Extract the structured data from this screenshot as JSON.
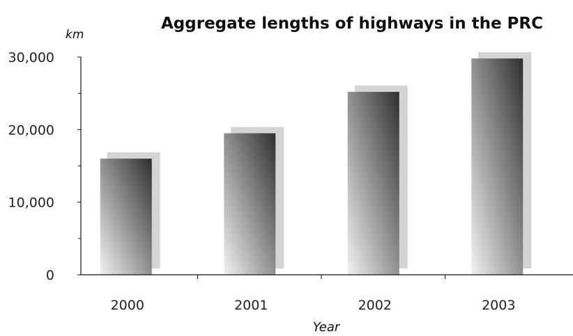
{
  "chart_data": {
    "type": "bar",
    "title": "Aggregate lengths of highways in the PRC",
    "ylabel": "km",
    "xlabel": "Year",
    "categories": [
      "2000",
      "2001",
      "2002",
      "2003"
    ],
    "values": [
      16000,
      19500,
      25200,
      29800
    ],
    "ylim": [
      0,
      30000
    ],
    "yticks": [
      0,
      10000,
      20000,
      30000
    ],
    "ytick_labels": [
      "0",
      "10,000",
      "20,000",
      "30,000"
    ],
    "grid": false,
    "legend": "none",
    "colors": {
      "bar_dark": "#2f2f2f",
      "bar_light": "#f2f2f2",
      "shadow": "#d4d4d4",
      "axis": "#111111"
    }
  }
}
